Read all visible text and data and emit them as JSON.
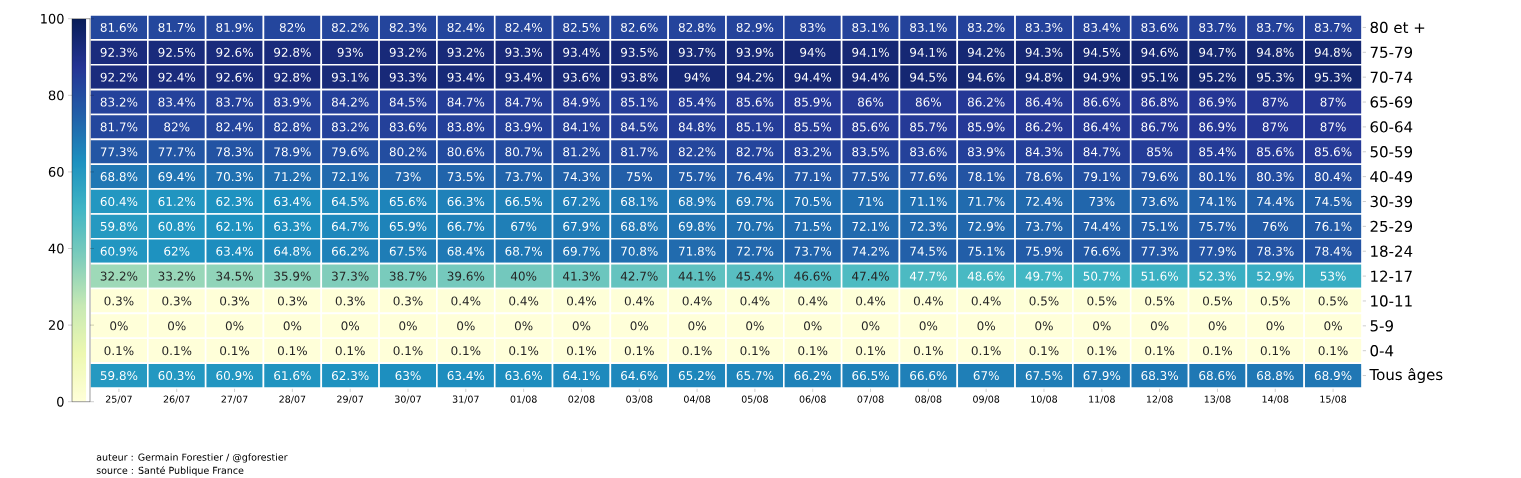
{
  "chart_data": {
    "type": "heatmap",
    "categories": [
      "25/07",
      "26/07",
      "27/07",
      "28/07",
      "29/07",
      "30/07",
      "31/07",
      "01/08",
      "02/08",
      "03/08",
      "04/08",
      "05/08",
      "06/08",
      "07/08",
      "08/08",
      "09/08",
      "10/08",
      "11/08",
      "12/08",
      "13/08",
      "14/08",
      "15/08"
    ],
    "y_categories": [
      "80 et +",
      "75-79",
      "70-74",
      "65-69",
      "60-64",
      "50-59",
      "40-49",
      "30-39",
      "25-29",
      "18-24",
      "12-17",
      "10-11",
      "5-9",
      "0-4",
      "Tous âges"
    ],
    "cells": [
      [
        81.6,
        81.7,
        81.9,
        82,
        82.2,
        82.3,
        82.4,
        82.4,
        82.5,
        82.6,
        82.8,
        82.9,
        83,
        83.1,
        83.1,
        83.2,
        83.3,
        83.4,
        83.6,
        83.7,
        83.7,
        83.7
      ],
      [
        92.3,
        92.5,
        92.6,
        92.8,
        93,
        93.2,
        93.2,
        93.3,
        93.4,
        93.5,
        93.7,
        93.9,
        94,
        94.1,
        94.1,
        94.2,
        94.3,
        94.5,
        94.6,
        94.7,
        94.8,
        94.8
      ],
      [
        92.2,
        92.4,
        92.6,
        92.8,
        93.1,
        93.3,
        93.4,
        93.4,
        93.6,
        93.8,
        94,
        94.2,
        94.4,
        94.4,
        94.5,
        94.6,
        94.8,
        94.9,
        95.1,
        95.2,
        95.3,
        95.3
      ],
      [
        83.2,
        83.4,
        83.7,
        83.9,
        84.2,
        84.5,
        84.7,
        84.7,
        84.9,
        85.1,
        85.4,
        85.6,
        85.9,
        86,
        86,
        86.2,
        86.4,
        86.6,
        86.8,
        86.9,
        87,
        87
      ],
      [
        81.7,
        82,
        82.4,
        82.8,
        83.2,
        83.6,
        83.8,
        83.9,
        84.1,
        84.5,
        84.8,
        85.1,
        85.5,
        85.6,
        85.7,
        85.9,
        86.2,
        86.4,
        86.7,
        86.9,
        87,
        87
      ],
      [
        77.3,
        77.7,
        78.3,
        78.9,
        79.6,
        80.2,
        80.6,
        80.7,
        81.2,
        81.7,
        82.2,
        82.7,
        83.2,
        83.5,
        83.6,
        83.9,
        84.3,
        84.7,
        85,
        85.4,
        85.6,
        85.6
      ],
      [
        68.8,
        69.4,
        70.3,
        71.2,
        72.1,
        73,
        73.5,
        73.7,
        74.3,
        75,
        75.7,
        76.4,
        77.1,
        77.5,
        77.6,
        78.1,
        78.6,
        79.1,
        79.6,
        80.1,
        80.3,
        80.4
      ],
      [
        60.4,
        61.2,
        62.3,
        63.4,
        64.5,
        65.6,
        66.3,
        66.5,
        67.2,
        68.1,
        68.9,
        69.7,
        70.5,
        71,
        71.1,
        71.7,
        72.4,
        73,
        73.6,
        74.1,
        74.4,
        74.5
      ],
      [
        59.8,
        60.8,
        62.1,
        63.3,
        64.7,
        65.9,
        66.7,
        67,
        67.9,
        68.8,
        69.8,
        70.7,
        71.5,
        72.1,
        72.3,
        72.9,
        73.7,
        74.4,
        75.1,
        75.7,
        76,
        76.1
      ],
      [
        60.9,
        62,
        63.4,
        64.8,
        66.2,
        67.5,
        68.4,
        68.7,
        69.7,
        70.8,
        71.8,
        72.7,
        73.7,
        74.2,
        74.5,
        75.1,
        75.9,
        76.6,
        77.3,
        77.9,
        78.3,
        78.4
      ],
      [
        32.2,
        33.2,
        34.5,
        35.9,
        37.3,
        38.7,
        39.6,
        40,
        41.3,
        42.7,
        44.1,
        45.4,
        46.6,
        47.4,
        47.7,
        48.6,
        49.7,
        50.7,
        51.6,
        52.3,
        52.9,
        53
      ],
      [
        0.3,
        0.3,
        0.3,
        0.3,
        0.3,
        0.3,
        0.4,
        0.4,
        0.4,
        0.4,
        0.4,
        0.4,
        0.4,
        0.4,
        0.4,
        0.4,
        0.5,
        0.5,
        0.5,
        0.5,
        0.5,
        0.5
      ],
      [
        0,
        0,
        0,
        0,
        0,
        0,
        0,
        0,
        0,
        0,
        0,
        0,
        0,
        0,
        0,
        0,
        0,
        0,
        0,
        0,
        0,
        0
      ],
      [
        0.1,
        0.1,
        0.1,
        0.1,
        0.1,
        0.1,
        0.1,
        0.1,
        0.1,
        0.1,
        0.1,
        0.1,
        0.1,
        0.1,
        0.1,
        0.1,
        0.1,
        0.1,
        0.1,
        0.1,
        0.1,
        0.1
      ],
      [
        59.8,
        60.3,
        60.9,
        61.6,
        62.3,
        63,
        63.4,
        63.6,
        64.1,
        64.6,
        65.2,
        65.7,
        66.2,
        66.5,
        66.6,
        67,
        67.5,
        67.9,
        68.3,
        68.6,
        68.8,
        68.9
      ]
    ],
    "cell_labels": [
      [
        "81.6%",
        "81.7%",
        "81.9%",
        "82%",
        "82.2%",
        "82.3%",
        "82.4%",
        "82.4%",
        "82.5%",
        "82.6%",
        "82.8%",
        "82.9%",
        "83%",
        "83.1%",
        "83.1%",
        "83.2%",
        "83.3%",
        "83.4%",
        "83.6%",
        "83.7%",
        "83.7%",
        "83.7%"
      ],
      [
        "92.3%",
        "92.5%",
        "92.6%",
        "92.8%",
        "93%",
        "93.2%",
        "93.2%",
        "93.3%",
        "93.4%",
        "93.5%",
        "93.7%",
        "93.9%",
        "94%",
        "94.1%",
        "94.1%",
        "94.2%",
        "94.3%",
        "94.5%",
        "94.6%",
        "94.7%",
        "94.8%",
        "94.8%"
      ],
      [
        "92.2%",
        "92.4%",
        "92.6%",
        "92.8%",
        "93.1%",
        "93.3%",
        "93.4%",
        "93.4%",
        "93.6%",
        "93.8%",
        "94%",
        "94.2%",
        "94.4%",
        "94.4%",
        "94.5%",
        "94.6%",
        "94.8%",
        "94.9%",
        "95.1%",
        "95.2%",
        "95.3%",
        "95.3%"
      ],
      [
        "83.2%",
        "83.4%",
        "83.7%",
        "83.9%",
        "84.2%",
        "84.5%",
        "84.7%",
        "84.7%",
        "84.9%",
        "85.1%",
        "85.4%",
        "85.6%",
        "85.9%",
        "86%",
        "86%",
        "86.2%",
        "86.4%",
        "86.6%",
        "86.8%",
        "86.9%",
        "87%",
        "87%"
      ],
      [
        "81.7%",
        "82%",
        "82.4%",
        "82.8%",
        "83.2%",
        "83.6%",
        "83.8%",
        "83.9%",
        "84.1%",
        "84.5%",
        "84.8%",
        "85.1%",
        "85.5%",
        "85.6%",
        "85.7%",
        "85.9%",
        "86.2%",
        "86.4%",
        "86.7%",
        "86.9%",
        "87%",
        "87%"
      ],
      [
        "77.3%",
        "77.7%",
        "78.3%",
        "78.9%",
        "79.6%",
        "80.2%",
        "80.6%",
        "80.7%",
        "81.2%",
        "81.7%",
        "82.2%",
        "82.7%",
        "83.2%",
        "83.5%",
        "83.6%",
        "83.9%",
        "84.3%",
        "84.7%",
        "85%",
        "85.4%",
        "85.6%",
        "85.6%"
      ],
      [
        "68.8%",
        "69.4%",
        "70.3%",
        "71.2%",
        "72.1%",
        "73%",
        "73.5%",
        "73.7%",
        "74.3%",
        "75%",
        "75.7%",
        "76.4%",
        "77.1%",
        "77.5%",
        "77.6%",
        "78.1%",
        "78.6%",
        "79.1%",
        "79.6%",
        "80.1%",
        "80.3%",
        "80.4%"
      ],
      [
        "60.4%",
        "61.2%",
        "62.3%",
        "63.4%",
        "64.5%",
        "65.6%",
        "66.3%",
        "66.5%",
        "67.2%",
        "68.1%",
        "68.9%",
        "69.7%",
        "70.5%",
        "71%",
        "71.1%",
        "71.7%",
        "72.4%",
        "73%",
        "73.6%",
        "74.1%",
        "74.4%",
        "74.5%"
      ],
      [
        "59.8%",
        "60.8%",
        "62.1%",
        "63.3%",
        "64.7%",
        "65.9%",
        "66.7%",
        "67%",
        "67.9%",
        "68.8%",
        "69.8%",
        "70.7%",
        "71.5%",
        "72.1%",
        "72.3%",
        "72.9%",
        "73.7%",
        "74.4%",
        "75.1%",
        "75.7%",
        "76%",
        "76.1%"
      ],
      [
        "60.9%",
        "62%",
        "63.4%",
        "64.8%",
        "66.2%",
        "67.5%",
        "68.4%",
        "68.7%",
        "69.7%",
        "70.8%",
        "71.8%",
        "72.7%",
        "73.7%",
        "74.2%",
        "74.5%",
        "75.1%",
        "75.9%",
        "76.6%",
        "77.3%",
        "77.9%",
        "78.3%",
        "78.4%"
      ],
      [
        "32.2%",
        "33.2%",
        "34.5%",
        "35.9%",
        "37.3%",
        "38.7%",
        "39.6%",
        "40%",
        "41.3%",
        "42.7%",
        "44.1%",
        "45.4%",
        "46.6%",
        "47.4%",
        "47.7%",
        "48.6%",
        "49.7%",
        "50.7%",
        "51.6%",
        "52.3%",
        "52.9%",
        "53%"
      ],
      [
        "0.3%",
        "0.3%",
        "0.3%",
        "0.3%",
        "0.3%",
        "0.3%",
        "0.4%",
        "0.4%",
        "0.4%",
        "0.4%",
        "0.4%",
        "0.4%",
        "0.4%",
        "0.4%",
        "0.4%",
        "0.4%",
        "0.5%",
        "0.5%",
        "0.5%",
        "0.5%",
        "0.5%",
        "0.5%"
      ],
      [
        "0%",
        "0%",
        "0%",
        "0%",
        "0%",
        "0%",
        "0%",
        "0%",
        "0%",
        "0%",
        "0%",
        "0%",
        "0%",
        "0%",
        "0%",
        "0%",
        "0%",
        "0%",
        "0%",
        "0%",
        "0%",
        "0%"
      ],
      [
        "0.1%",
        "0.1%",
        "0.1%",
        "0.1%",
        "0.1%",
        "0.1%",
        "0.1%",
        "0.1%",
        "0.1%",
        "0.1%",
        "0.1%",
        "0.1%",
        "0.1%",
        "0.1%",
        "0.1%",
        "0.1%",
        "0.1%",
        "0.1%",
        "0.1%",
        "0.1%",
        "0.1%",
        "0.1%"
      ],
      [
        "59.8%",
        "60.3%",
        "60.9%",
        "61.6%",
        "62.3%",
        "63%",
        "63.4%",
        "63.6%",
        "64.1%",
        "64.6%",
        "65.2%",
        "65.7%",
        "66.2%",
        "66.5%",
        "66.6%",
        "67%",
        "67.5%",
        "67.9%",
        "68.3%",
        "68.6%",
        "68.8%",
        "68.9%"
      ]
    ],
    "clim": [
      0,
      100
    ],
    "cticks": [
      0,
      20,
      40,
      60,
      80,
      100
    ],
    "annotations": [
      "auteur : Germain Forestier / @gforestier",
      "source : Santé Publique France"
    ]
  }
}
